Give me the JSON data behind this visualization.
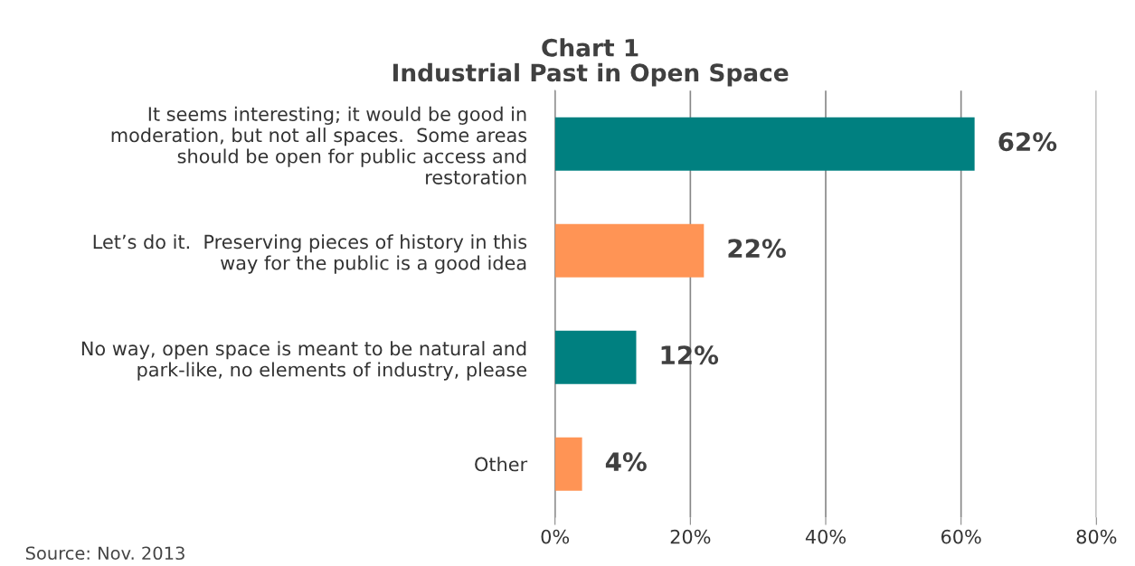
{
  "chart_data": {
    "type": "bar",
    "orientation": "horizontal",
    "title": "Chart 1\nIndustrial Past in Open Space",
    "categories": [
      "It seems interesting; it would be good in\nmoderation, but not all spaces.  Some areas\nshould be open for public access and\nrestoration",
      "Let’s do it.  Preserving pieces of history in this\nway for the public is a good idea",
      "No way, open space is meant to be natural and\npark-like, no elements of industry, please",
      "Other"
    ],
    "values": [
      62,
      22,
      12,
      4
    ],
    "colors": [
      "#008080",
      "#ff9455",
      "#008080",
      "#ff9455"
    ],
    "value_labels": [
      "62%",
      "22%",
      "12%",
      "4%"
    ],
    "xlim": [
      0,
      80
    ],
    "xticks": [
      {
        "value": 0,
        "label": "0%"
      },
      {
        "value": 20,
        "label": "20%"
      },
      {
        "value": 40,
        "label": "40%"
      },
      {
        "value": 60,
        "label": "60%"
      },
      {
        "value": 80,
        "label": "80%"
      }
    ],
    "grid": "x",
    "legend": false,
    "annotations": [
      "Source: Nov. 2013"
    ]
  }
}
